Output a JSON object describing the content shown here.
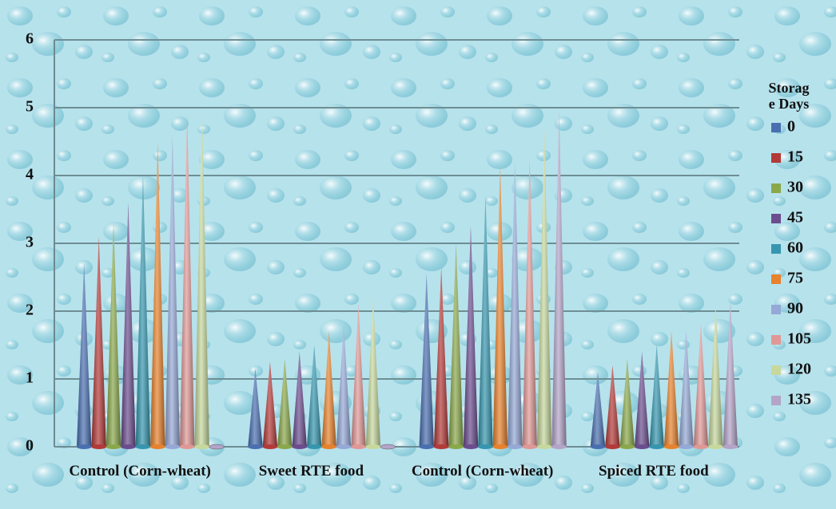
{
  "chart_data": {
    "type": "cone",
    "categories": [
      "Control (Corn-wheat)",
      "Sweet RTE food",
      "Control (Corn-wheat)",
      "Spiced RTE food"
    ],
    "legend_title": "Storage Days",
    "series": [
      {
        "name": "0",
        "color": "#4a6fb0",
        "values": [
          2.7,
          1.15,
          2.55,
          1.1
        ]
      },
      {
        "name": "15",
        "color": "#b33a38",
        "values": [
          3.1,
          1.25,
          2.65,
          1.2
        ]
      },
      {
        "name": "30",
        "color": "#8aa84a",
        "values": [
          3.3,
          1.3,
          3.0,
          1.3
        ]
      },
      {
        "name": "45",
        "color": "#6b4c8e",
        "values": [
          3.6,
          1.4,
          3.25,
          1.4
        ]
      },
      {
        "name": "60",
        "color": "#3596ae",
        "values": [
          4.0,
          1.5,
          3.7,
          1.5
        ]
      },
      {
        "name": "75",
        "color": "#e8822c",
        "values": [
          4.5,
          1.7,
          4.15,
          1.7
        ]
      },
      {
        "name": "90",
        "color": "#95a8d6",
        "values": [
          4.6,
          1.8,
          4.2,
          1.7
        ]
      },
      {
        "name": "105",
        "color": "#e09896",
        "values": [
          4.9,
          2.1,
          4.25,
          1.8
        ]
      },
      {
        "name": "120",
        "color": "#c6d89c",
        "values": [
          5.0,
          2.2,
          4.7,
          2.1
        ]
      },
      {
        "name": "135",
        "color": "#b4a4c8",
        "values": [
          0,
          0,
          4.95,
          2.15
        ]
      }
    ],
    "ylim": [
      0,
      6
    ],
    "yticks": [
      0,
      1,
      2,
      3,
      4,
      5,
      6
    ],
    "grid": true,
    "legend": "right"
  }
}
